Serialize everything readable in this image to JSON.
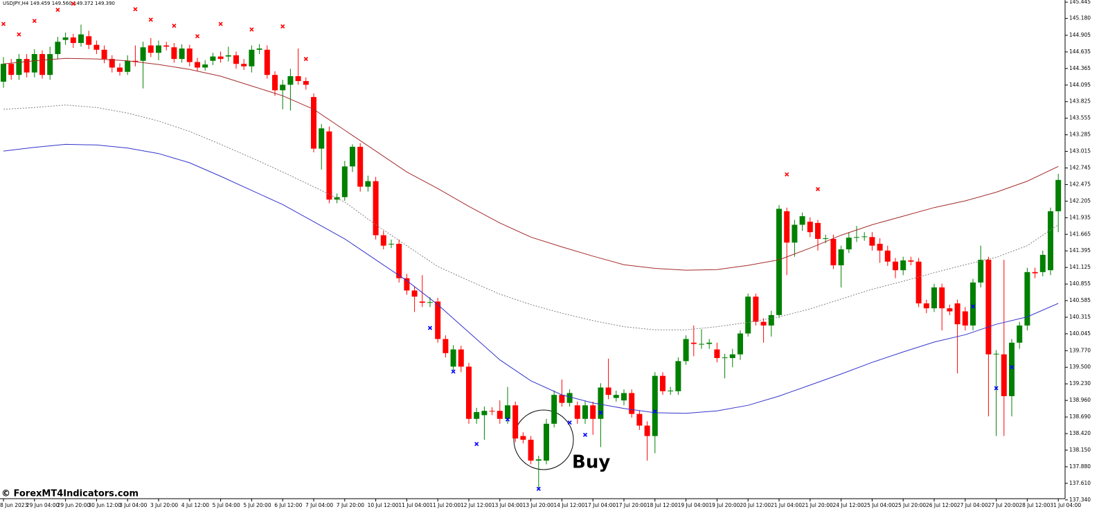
{
  "chart_data": {
    "type": "candlestick",
    "title": "USDJPY,H4  149.459 149.560 149.372 149.390",
    "annotation": "Buy",
    "watermark": "© ForexMT4Indicators.com",
    "up_color": "#008000",
    "down_color": "#ff0000",
    "ylim": [
      137.36,
      145.48
    ],
    "yticks": [
      145.445,
      {
        "value": 145.18,
        "label": "145.180"
      },
      144.905,
      144.635,
      144.365,
      144.095,
      143.825,
      143.555,
      143.285,
      143.015,
      142.745,
      142.475,
      142.205,
      141.935,
      141.665,
      141.395,
      141.125,
      140.855,
      140.585,
      140.315,
      140.045,
      {
        "value": 139.77,
        "label": "139.770"
      },
      {
        "value": 139.5,
        "label": "139.500"
      },
      {
        "value": 139.23,
        "label": "139.230"
      },
      {
        "value": 138.96,
        "label": "138.960"
      },
      {
        "value": 138.69,
        "label": "138.690"
      },
      {
        "value": 138.42,
        "label": "138.420"
      },
      {
        "value": 138.15,
        "label": "138.150"
      },
      {
        "value": 137.88,
        "label": "137.880"
      },
      {
        "value": 137.61,
        "label": "137.610"
      },
      {
        "value": 137.34,
        "label": "137.340"
      }
    ],
    "xlabels": [
      "8 Jun 2023",
      "29 Jun 04:00",
      "29 Jun 20:00",
      "30 Jun 12:00",
      "3 Jul 04:00",
      "3 Jul 20:00",
      "4 Jul 12:00",
      "5 Jul 04:00",
      "5 Jul 20:00",
      "6 Jul 12:00",
      "7 Jul 04:00",
      "7 Jul 20:00",
      "10 Jul 12:00",
      "11 Jul 04:00",
      "11 Jul 20:00",
      "12 Jul 12:00",
      "13 Jul 04:00",
      "13 Jul 20:00",
      "14 Jul 12:00",
      "17 Jul 04:00",
      "17 Jul 20:00",
      "18 Jul 12:00",
      "19 Jul 04:00",
      "19 Jul 20:00",
      "20 Jul 12:00",
      "21 Jul 04:00",
      "21 Jul 20:00",
      "24 Jul 12:00",
      "25 Jul 04:00",
      "25 Jul 20:00",
      "26 Jul 12:00",
      "27 Jul 04:00",
      "27 Jul 20:00",
      "28 Jul 12:00",
      "31 Jul 04:00"
    ],
    "open": [
      144.15,
      144.44,
      144.26,
      144.52,
      144.3,
      144.6,
      144.26,
      144.6,
      144.83,
      144.87,
      144.78,
      144.89,
      144.75,
      144.67,
      144.52,
      144.38,
      144.31,
      144.49,
      144.49,
      144.74,
      144.62,
      144.74,
      144.71,
      144.52,
      144.69,
      144.47,
      144.38,
      144.49,
      144.56,
      144.56,
      144.58,
      144.44,
      144.4,
      144.67,
      144.67,
      144.26,
      144.01,
      144.1,
      144.24,
      144.16,
      143.9,
      143.06,
      143.34,
      142.23,
      142.27,
      142.77,
      143.09,
      142.44,
      142.53,
      141.65,
      141.5,
      141.51,
      140.95,
      140.75,
      140.57,
      140.55,
      140.57,
      139.96,
      139.51,
      139.79,
      139.51,
      138.66,
      138.72,
      138.79,
      138.79,
      138.66,
      138.88,
      138.38,
      138.32,
      137.98,
      137.98,
      138.58,
      139.05,
      138.92,
      138.88,
      138.66,
      138.88,
      138.66,
      139.17,
      139.0,
      138.96,
      139.08,
      138.74,
      138.55,
      138.38,
      139.36,
      139.11,
      139.11,
      139.6,
      139.9,
      139.87,
      139.88,
      139.79,
      139.65,
      139.65,
      139.71,
      140.05,
      140.65,
      140.24,
      140.18,
      140.35,
      142.04,
      141.53,
      141.82,
      141.87,
      141.85,
      141.59,
      141.59,
      141.16,
      141.42,
      141.61,
      141.62,
      141.62,
      141.51,
      141.4,
      141.22,
      141.08,
      141.24,
      141.22,
      140.54,
      140.46,
      140.8,
      140.46,
      140.54,
      140.41,
      140.18,
      140.88,
      141.25,
      139.71,
      139.71,
      139.03,
      139.9,
      140.18,
      141.05,
      141.05,
      141.08,
      142.04
    ],
    "high": [
      144.55,
      144.52,
      144.6,
      144.6,
      144.68,
      144.66,
      144.72,
      144.88,
      144.95,
      144.93,
      145.08,
      144.98,
      144.82,
      144.74,
      144.58,
      144.45,
      144.58,
      144.74,
      144.8,
      144.86,
      144.82,
      144.8,
      144.78,
      144.76,
      144.75,
      144.54,
      144.5,
      144.62,
      144.64,
      144.72,
      144.64,
      144.52,
      144.74,
      144.76,
      144.74,
      144.32,
      144.18,
      144.36,
      144.69,
      144.22,
      143.96,
      143.46,
      143.42,
      142.33,
      142.86,
      143.13,
      143.15,
      142.62,
      142.6,
      141.72,
      141.58,
      141.58,
      141.02,
      140.82,
      141.0,
      140.64,
      140.63,
      140.02,
      139.86,
      139.85,
      139.57,
      138.84,
      138.86,
      138.85,
      138.96,
      139.18,
      138.94,
      138.44,
      138.38,
      138.06,
      138.66,
      139.12,
      139.3,
      139.14,
      138.94,
      138.95,
      138.94,
      139.24,
      139.64,
      139.12,
      139.14,
      139.14,
      138.8,
      138.62,
      139.42,
      139.42,
      139.18,
      139.66,
      140.02,
      140.18,
      140.12,
      139.96,
      139.9,
      139.72,
      139.8,
      140.1,
      140.7,
      140.7,
      140.3,
      140.42,
      142.14,
      142.1,
      141.9,
      142.02,
      141.94,
      141.9,
      141.66,
      141.66,
      141.48,
      141.7,
      141.8,
      141.7,
      141.7,
      141.6,
      141.48,
      141.28,
      141.3,
      141.3,
      141.28,
      140.6,
      140.86,
      140.86,
      140.52,
      140.6,
      140.48,
      140.94,
      141.48,
      141.3,
      139.78,
      141.25,
      139.96,
      140.24,
      141.12,
      141.12,
      141.4,
      142.1,
      142.65
    ],
    "low": [
      144.05,
      144.18,
      144.18,
      144.22,
      144.22,
      144.2,
      144.18,
      144.52,
      144.75,
      144.7,
      144.72,
      144.68,
      144.6,
      144.45,
      144.3,
      144.25,
      144.26,
      144.4,
      144.04,
      144.55,
      144.5,
      144.66,
      144.46,
      144.46,
      144.4,
      144.32,
      144.33,
      144.42,
      144.46,
      144.48,
      144.36,
      144.34,
      144.3,
      144.6,
      144.2,
      143.92,
      143.7,
      143.68,
      144.1,
      144.02,
      143.0,
      142.72,
      142.17,
      142.17,
      142.21,
      142.68,
      142.36,
      142.36,
      141.58,
      141.42,
      141.44,
      140.88,
      140.68,
      140.4,
      140.48,
      140.48,
      139.9,
      139.66,
      139.45,
      139.42,
      138.58,
      138.58,
      138.32,
      138.72,
      138.58,
      138.58,
      138.28,
      138.26,
      137.92,
      137.53,
      137.92,
      138.52,
      138.86,
      138.86,
      138.58,
      138.58,
      138.4,
      138.2,
      138.98,
      138.94,
      138.88,
      138.68,
      138.48,
      137.98,
      138.1,
      139.05,
      139.05,
      139.05,
      139.54,
      139.68,
      139.8,
      139.8,
      139.58,
      139.32,
      139.5,
      139.62,
      140.0,
      140.18,
      139.9,
      140.0,
      140.3,
      141.0,
      141.3,
      141.72,
      141.62,
      141.4,
      141.52,
      141.1,
      140.8,
      141.36,
      141.54,
      141.56,
      141.4,
      141.2,
      141.15,
      140.95,
      141.0,
      141.16,
      140.48,
      140.38,
      140.4,
      140.1,
      140.35,
      139.4,
      140.1,
      140.1,
      140.8,
      138.7,
      138.38,
      138.38,
      138.7,
      139.8,
      140.1,
      140.95,
      140.98,
      141.0,
      141.7
    ],
    "close": [
      144.44,
      144.26,
      144.52,
      144.3,
      144.6,
      144.26,
      144.6,
      144.8,
      144.87,
      144.78,
      144.92,
      144.75,
      144.67,
      144.52,
      144.38,
      144.31,
      144.49,
      144.47,
      144.71,
      144.62,
      144.74,
      144.72,
      144.52,
      144.69,
      144.47,
      144.38,
      144.43,
      144.56,
      144.52,
      144.58,
      144.44,
      144.4,
      144.67,
      144.69,
      144.26,
      144.01,
      144.1,
      144.24,
      144.16,
      144.1,
      143.06,
      143.39,
      142.23,
      142.27,
      142.77,
      143.09,
      142.44,
      142.53,
      141.65,
      141.48,
      141.51,
      140.95,
      140.75,
      140.65,
      140.55,
      140.56,
      139.96,
      139.73,
      139.79,
      139.51,
      138.66,
      138.77,
      138.79,
      138.78,
      138.66,
      138.88,
      138.34,
      138.32,
      137.98,
      138.0,
      138.58,
      139.05,
      138.92,
      139.08,
      138.66,
      138.88,
      138.66,
      139.17,
      139.05,
      139.05,
      139.08,
      138.74,
      138.55,
      138.38,
      139.36,
      139.11,
      139.12,
      139.6,
      139.96,
      139.88,
      139.88,
      139.9,
      139.65,
      139.66,
      139.71,
      140.05,
      140.65,
      140.24,
      140.18,
      140.35,
      142.08,
      141.53,
      141.82,
      141.96,
      141.7,
      141.59,
      141.6,
      141.16,
      141.42,
      141.61,
      141.62,
      141.63,
      141.48,
      141.4,
      141.22,
      141.08,
      141.24,
      141.22,
      140.54,
      140.46,
      140.8,
      140.46,
      140.41,
      140.2,
      140.18,
      140.88,
      141.25,
      139.71,
      139.72,
      139.03,
      139.9,
      140.18,
      141.05,
      141.03,
      141.33,
      142.04,
      142.55
    ],
    "lines": [
      {
        "color": "#a52a2a",
        "style": "solid",
        "values": [
          144.44,
          144.49,
          144.53,
          144.52,
          144.49,
          144.43,
          144.35,
          144.24,
          144.08,
          143.92,
          143.7,
          143.36,
          143.02,
          142.68,
          142.41,
          142.12,
          141.85,
          141.62,
          141.46,
          141.31,
          141.17,
          141.11,
          141.08,
          141.09,
          141.16,
          141.25,
          141.44,
          141.65,
          141.82,
          141.96,
          142.1,
          142.21,
          142.35,
          142.53,
          142.77
        ]
      },
      {
        "color": "#808080",
        "style": "dotted",
        "values": [
          143.7,
          143.73,
          143.77,
          143.73,
          143.64,
          143.51,
          143.34,
          143.13,
          142.91,
          142.68,
          142.44,
          142.19,
          141.82,
          141.48,
          141.14,
          140.91,
          140.69,
          140.52,
          140.38,
          140.26,
          140.16,
          140.11,
          140.11,
          140.16,
          140.23,
          140.32,
          140.45,
          140.61,
          140.77,
          140.9,
          141.04,
          141.17,
          141.29,
          141.48,
          141.82
        ]
      },
      {
        "color": "#3333cc",
        "style": "solid",
        "values": [
          143.02,
          143.08,
          143.13,
          143.12,
          143.07,
          142.98,
          142.83,
          142.61,
          142.38,
          142.15,
          141.87,
          141.59,
          141.25,
          140.91,
          140.52,
          140.07,
          139.62,
          139.28,
          139.05,
          138.92,
          138.83,
          138.76,
          138.75,
          138.79,
          138.88,
          139.03,
          139.21,
          139.39,
          139.58,
          139.75,
          139.91,
          140.03,
          140.2,
          140.32,
          140.54
        ]
      }
    ],
    "signals": [
      {
        "color": "#ff0000",
        "candle": [
          0,
          2,
          4,
          7,
          9,
          17,
          19,
          22,
          25,
          28,
          32,
          36,
          39,
          101,
          105
        ],
        "values": [
          145.09,
          144.92,
          145.14,
          145.32,
          145.42,
          145.33,
          145.16,
          145.06,
          144.89,
          145.09,
          145.0,
          145.05,
          144.52,
          142.64,
          142.4
        ]
      },
      {
        "color": "#0000ff",
        "candle": [
          55,
          58,
          61,
          65,
          69,
          73,
          75,
          77,
          84,
          125,
          128,
          130
        ],
        "values": [
          140.14,
          139.43,
          138.25,
          138.65,
          137.52,
          138.6,
          138.4,
          138.76,
          138.78,
          140.49,
          139.16,
          139.5
        ]
      }
    ]
  }
}
